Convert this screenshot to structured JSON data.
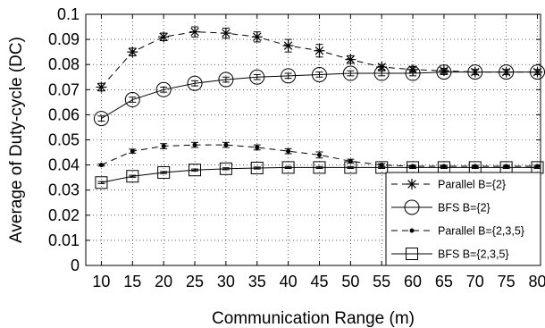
{
  "chart_data": {
    "type": "line",
    "title": "",
    "xlabel": "Communication Range (m)",
    "ylabel": "Average of Duty-cycle (DC)",
    "xlim": [
      7.5,
      80.5
    ],
    "ylim": [
      0,
      0.1
    ],
    "x_ticks": [
      "10",
      "15",
      "20",
      "25",
      "30",
      "35",
      "40",
      "45",
      "50",
      "55",
      "60",
      "65",
      "70",
      "75",
      "80"
    ],
    "y_ticks": [
      "0",
      "0.01",
      "0.02",
      "0.03",
      "0.04",
      "0.05",
      "0.06",
      "0.07",
      "0.08",
      "0.09",
      "0.1"
    ],
    "grid": true,
    "legend_position": "bottom-right",
    "x": [
      10,
      15,
      20,
      25,
      30,
      35,
      40,
      45,
      50,
      55,
      60,
      65,
      70,
      75,
      80
    ],
    "series": [
      {
        "name": "Parallel B={2}",
        "style": "dashed",
        "marker": "asterisk",
        "values": [
          0.071,
          0.085,
          0.091,
          0.093,
          0.0925,
          0.091,
          0.0875,
          0.0855,
          0.082,
          0.079,
          0.078,
          0.0775,
          0.077,
          0.077,
          0.077
        ],
        "errors": [
          0.0015,
          0.0015,
          0.0015,
          0.002,
          0.002,
          0.002,
          0.0025,
          0.0025,
          0.0015,
          0.001,
          0.001,
          0.001,
          0.001,
          0.001,
          0.001
        ]
      },
      {
        "name": "BFS B={2}",
        "style": "solid",
        "marker": "circle",
        "values": [
          0.0585,
          0.066,
          0.07,
          0.0725,
          0.074,
          0.075,
          0.0755,
          0.076,
          0.0765,
          0.0765,
          0.0765,
          0.077,
          0.077,
          0.077,
          0.077
        ],
        "errors": [
          0.001,
          0.001,
          0.001,
          0.001,
          0.001,
          0.001,
          0.001,
          0.001,
          0.001,
          0.001,
          0.001,
          0.001,
          0.001,
          0.001,
          0.001
        ]
      },
      {
        "name": "Parallel B={2,3,5}",
        "style": "dashed",
        "marker": "dot",
        "values": [
          0.04,
          0.0455,
          0.0475,
          0.048,
          0.048,
          0.047,
          0.0455,
          0.044,
          0.0415,
          0.04,
          0.0395,
          0.0395,
          0.0395,
          0.0395,
          0.0395
        ],
        "errors": [
          0.0004,
          0.0008,
          0.001,
          0.001,
          0.001,
          0.001,
          0.001,
          0.0012,
          0.0008,
          0.0005,
          0.0004,
          0.0004,
          0.0004,
          0.0004,
          0.0004
        ]
      },
      {
        "name": "BFS B={2,3,5}",
        "style": "solid",
        "marker": "square",
        "values": [
          0.033,
          0.0355,
          0.037,
          0.038,
          0.0385,
          0.0388,
          0.039,
          0.039,
          0.039,
          0.039,
          0.039,
          0.039,
          0.039,
          0.039,
          0.039
        ],
        "errors": [
          0.0004,
          0.0004,
          0.0004,
          0.0004,
          0.0004,
          0.0004,
          0.0004,
          0.0004,
          0.0004,
          0.0004,
          0.0004,
          0.0004,
          0.0004,
          0.0004,
          0.0004
        ]
      }
    ]
  }
}
